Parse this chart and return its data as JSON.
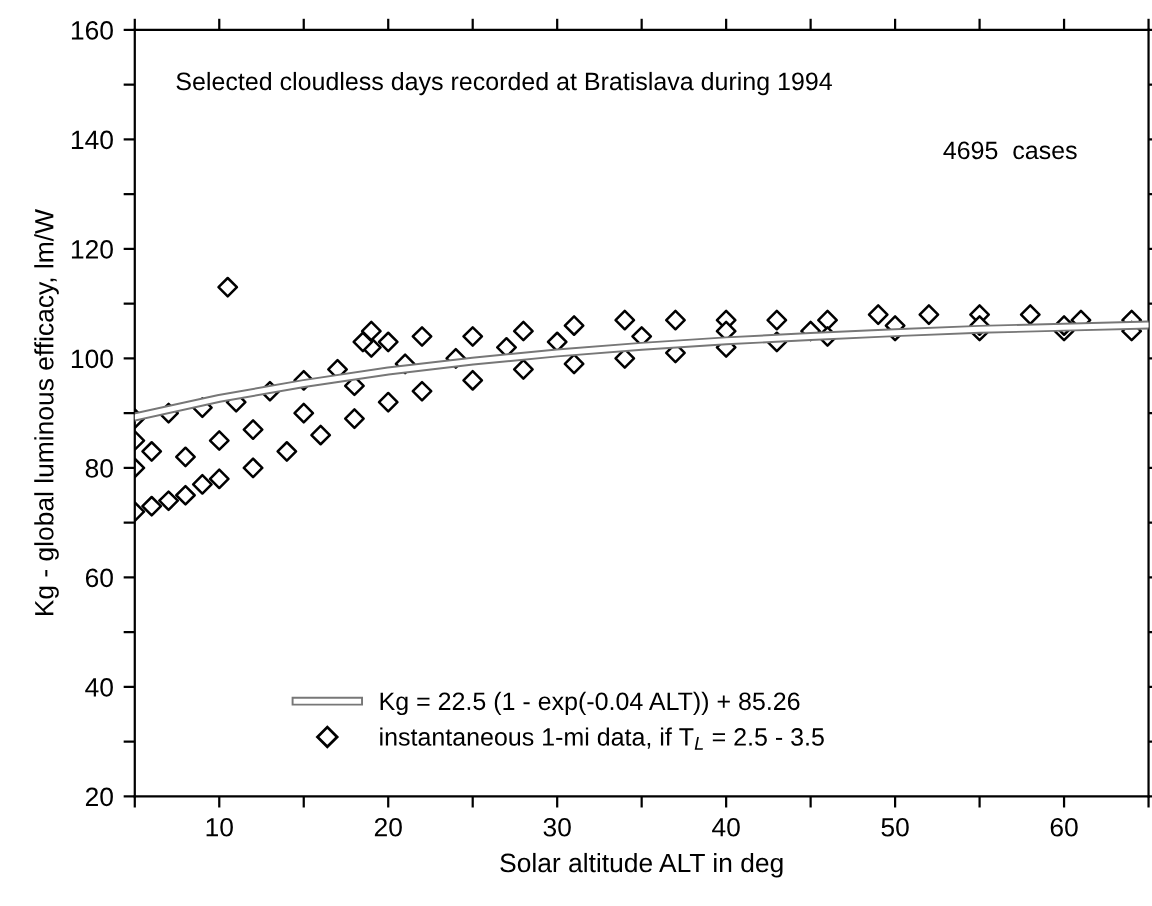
{
  "chart_data": {
    "type": "scatter",
    "xlabel": "Solar altitude ALT in deg",
    "ylabel": "Kg - global luminous efficacy, lm/W",
    "xlim": [
      5,
      65
    ],
    "ylim": [
      20,
      160
    ],
    "xticks": [
      {
        "value": 5,
        "label": null
      },
      10,
      {
        "value": 15,
        "label": null
      },
      20,
      {
        "value": 25,
        "label": null
      },
      30,
      {
        "value": 35,
        "label": null
      },
      40,
      {
        "value": 45,
        "label": null
      },
      50,
      {
        "value": 55,
        "label": null
      },
      60,
      {
        "value": 65,
        "label": null
      }
    ],
    "yticks": [
      20,
      {
        "value": 30,
        "label": null
      },
      40,
      {
        "value": 50,
        "label": null
      },
      60,
      {
        "value": 70,
        "label": null
      },
      80,
      {
        "value": 90,
        "label": null
      },
      100,
      {
        "value": 110,
        "label": null
      },
      120,
      {
        "value": 130,
        "label": null
      },
      140,
      {
        "value": 150,
        "label": null
      },
      160
    ],
    "grid": false,
    "legend": "bottom",
    "annotations": [
      "Selected cloudless days recorded at Bratislava during 1994",
      "4695  cases"
    ],
    "series": [
      {
        "name": "Kg = 22.5 (1 - exp(-0.04 ALT)) + 85.26",
        "type": "line",
        "color": "#ffffff",
        "marker": "none",
        "line_style": "solid",
        "x": [
          5,
          10,
          15,
          20,
          25,
          30,
          35,
          40,
          45,
          50,
          55,
          60,
          65
        ],
        "values": [
          89.3,
          92.7,
          95.4,
          97.7,
          99.5,
          101.0,
          102.2,
          103.2,
          104.0,
          104.7,
          105.3,
          105.7,
          106.1
        ]
      },
      {
        "name": "instantaneous 1-mi data, if T$_{L}$ = 2.5 - 3.5",
        "color": "#000000",
        "marker": "diamond",
        "x": [
          5,
          7,
          9,
          11,
          13,
          15,
          17,
          19,
          20,
          22,
          25,
          28,
          31,
          34,
          37,
          40,
          43,
          46,
          49,
          52,
          55,
          58,
          61,
          64,
          5,
          6,
          7,
          8,
          9,
          10,
          12,
          14,
          16,
          18,
          20,
          22,
          25,
          28,
          31,
          34,
          37,
          40,
          43,
          46,
          50,
          55,
          60,
          64,
          5,
          5,
          6,
          8,
          10,
          12,
          15,
          18,
          21,
          24,
          27,
          30,
          35,
          40,
          45,
          50,
          55,
          60,
          10.5,
          19,
          18.5
        ],
        "values": [
          89,
          90,
          91,
          92,
          94,
          96,
          98,
          102,
          103,
          104,
          104,
          105,
          106,
          107,
          107,
          107,
          107,
          107,
          108,
          108,
          108,
          108,
          107,
          107,
          72,
          73,
          74,
          75,
          77,
          78,
          80,
          83,
          86,
          89,
          92,
          94,
          96,
          98,
          99,
          100,
          101,
          102,
          103,
          104,
          105,
          105,
          105,
          105,
          80,
          85,
          83,
          82,
          85,
          87,
          90,
          95,
          99,
          100,
          102,
          103,
          104,
          105,
          105,
          106,
          106,
          106,
          113,
          105,
          103
        ]
      }
    ]
  }
}
